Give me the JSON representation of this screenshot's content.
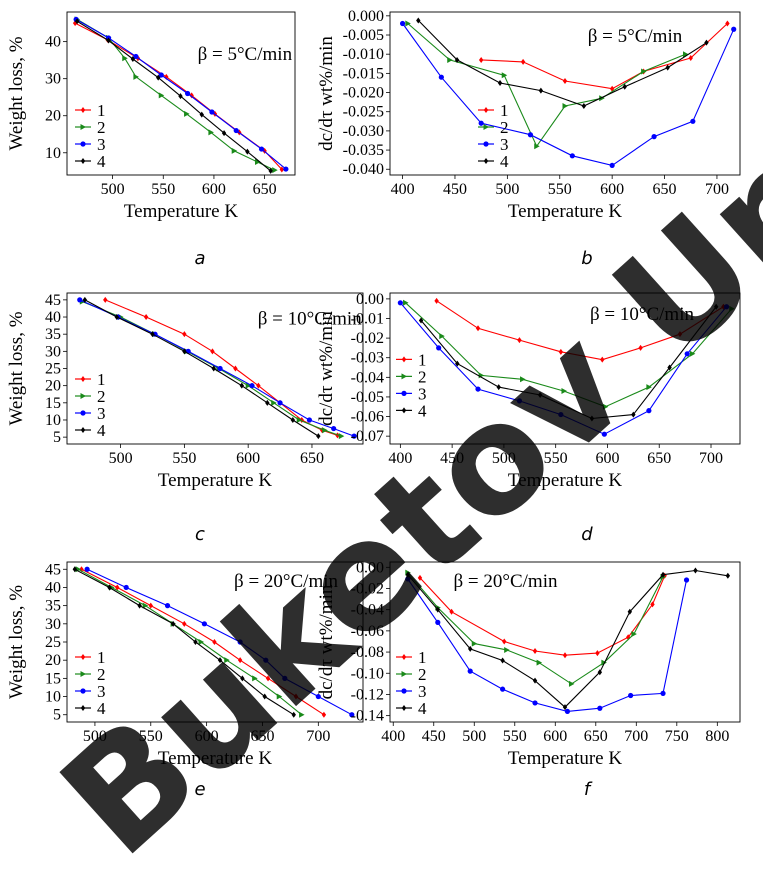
{
  "watermark": "Buketov Uni",
  "colors": {
    "1": "#ff0000",
    "2": "#1a8a1a",
    "3": "#0000ff",
    "4": "#000000"
  },
  "chart_data": [
    {
      "panel": "a",
      "caption": "a",
      "type": "line",
      "annotation": "β = 5°C/min",
      "xlabel": "Temperature K",
      "ylabel": "Weight loss, %",
      "xlim": [
        455,
        680
      ],
      "ylim": [
        4,
        48
      ],
      "xticks": [
        500,
        550,
        600,
        650
      ],
      "yticks": [
        10,
        20,
        30,
        40
      ],
      "legend": "lower-left",
      "series": [
        {
          "name": "1",
          "x": [
            463,
            495,
            525,
            553,
            578,
            601,
            625,
            650,
            667
          ],
          "y": [
            45,
            40.5,
            35.5,
            30.5,
            25.5,
            20.5,
            15.5,
            10.5,
            5.5
          ]
        },
        {
          "name": "2",
          "x": [
            465,
            496,
            512,
            523,
            548,
            573,
            597,
            620,
            643,
            660
          ],
          "y": [
            46,
            41,
            35.5,
            30.5,
            25.5,
            20.5,
            15.5,
            10.5,
            7.5,
            5.3
          ]
        },
        {
          "name": "3",
          "x": [
            464,
            496,
            523,
            548,
            574,
            598,
            622,
            647,
            671
          ],
          "y": [
            46,
            41,
            36,
            31,
            26,
            21,
            16,
            11,
            5.6
          ]
        },
        {
          "name": "4",
          "x": [
            465,
            496,
            520,
            545,
            567,
            588,
            610,
            633,
            656
          ],
          "y": [
            45.5,
            40.3,
            35.3,
            30.3,
            25.3,
            20.3,
            15.3,
            10.3,
            5.1
          ]
        }
      ]
    },
    {
      "panel": "b",
      "caption": "b",
      "type": "line",
      "annotation": "β = 5°C/min",
      "xlabel": "Temperature K",
      "ylabel": "dc/dτ wt%/min",
      "xlim": [
        388,
        722
      ],
      "ylim": [
        -0.0415,
        0.001
      ],
      "xticks": [
        400,
        450,
        500,
        550,
        600,
        650,
        700
      ],
      "yticks": [
        0,
        -0.005,
        -0.01,
        -0.015,
        -0.02,
        -0.025,
        -0.03,
        -0.035,
        -0.04
      ],
      "yticklabels": [
        "0.000",
        "-0.005",
        "-0.010",
        "-0.015",
        "-0.020",
        "-0.025",
        "-0.030",
        "-0.035",
        "-0.040"
      ],
      "legend": "lower-right",
      "series": [
        {
          "name": "1",
          "x": [
            475,
            515,
            555,
            600,
            630,
            675,
            710
          ],
          "y": [
            -0.0115,
            -0.012,
            -0.017,
            -0.019,
            -0.0145,
            -0.011,
            -0.002
          ]
        },
        {
          "name": "2",
          "x": [
            405,
            445,
            497,
            528,
            555,
            590,
            630,
            670
          ],
          "y": [
            -0.002,
            -0.0115,
            -0.0155,
            -0.034,
            -0.0235,
            -0.0215,
            -0.0145,
            -0.01
          ]
        },
        {
          "name": "3",
          "x": [
            400,
            437,
            475,
            522,
            562,
            600,
            640,
            677,
            716
          ],
          "y": [
            -0.002,
            -0.016,
            -0.028,
            -0.031,
            -0.0365,
            -0.039,
            -0.0315,
            -0.0275,
            -0.0035
          ]
        },
        {
          "name": "4",
          "x": [
            415,
            452,
            493,
            532,
            573,
            612,
            653,
            690
          ],
          "y": [
            -0.0012,
            -0.0115,
            -0.0175,
            -0.0195,
            -0.0235,
            -0.0185,
            -0.0135,
            -0.007
          ]
        }
      ]
    },
    {
      "panel": "c",
      "caption": "c",
      "type": "line",
      "annotation": "β = 10°C/min",
      "xlabel": "Temperature K",
      "ylabel": "Weight loss, %",
      "xlim": [
        458,
        690
      ],
      "ylim": [
        3,
        47
      ],
      "xticks": [
        500,
        550,
        600,
        650
      ],
      "yticks": [
        5,
        10,
        15,
        20,
        25,
        30,
        35,
        40,
        45
      ],
      "legend": "lower-left",
      "series": [
        {
          "name": "1",
          "x": [
            488,
            520,
            550,
            572,
            590,
            608,
            625,
            642,
            658,
            670
          ],
          "y": [
            45,
            40,
            35,
            30,
            25,
            20,
            15,
            10,
            7,
            5.5
          ]
        },
        {
          "name": "2",
          "x": [
            470,
            500,
            527,
            552,
            577,
            600,
            620,
            640,
            660,
            673
          ],
          "y": [
            44.5,
            40,
            35,
            30,
            25,
            20,
            15,
            10,
            7,
            5.3
          ]
        },
        {
          "name": "3",
          "x": [
            468,
            498,
            527,
            553,
            578,
            603,
            625,
            648,
            667,
            683
          ],
          "y": [
            45,
            40,
            35,
            30,
            25,
            20,
            15,
            10,
            7.5,
            5.3
          ]
        },
        {
          "name": "4",
          "x": [
            472,
            497,
            525,
            550,
            573,
            595,
            615,
            635,
            655
          ],
          "y": [
            45,
            40,
            35,
            30,
            25,
            20,
            15,
            10,
            5.3
          ]
        }
      ]
    },
    {
      "panel": "d",
      "caption": "d",
      "type": "line",
      "annotation": "β = 10°C/min",
      "xlabel": "Temperature K",
      "ylabel": "dc/dτ wt%/min",
      "xlim": [
        390,
        728
      ],
      "ylim": [
        -0.074,
        0.003
      ],
      "xticks": [
        400,
        450,
        500,
        550,
        600,
        650,
        700
      ],
      "yticks": [
        0,
        -0.01,
        -0.02,
        -0.03,
        -0.04,
        -0.05,
        -0.06,
        -0.07
      ],
      "yticklabels": [
        "0.00",
        "-0.01",
        "-0.02",
        "-0.03",
        "-0.04",
        "-0.05",
        "-0.06",
        "-0.07"
      ],
      "legend": "left",
      "series": [
        {
          "name": "1",
          "x": [
            435,
            475,
            515,
            555,
            595,
            632,
            670,
            712
          ],
          "y": [
            -0.001,
            -0.015,
            -0.021,
            -0.027,
            -0.031,
            -0.025,
            -0.018,
            -0.004
          ]
        },
        {
          "name": "2",
          "x": [
            405,
            440,
            478,
            518,
            558,
            598,
            640,
            682,
            720
          ],
          "y": [
            -0.002,
            -0.019,
            -0.039,
            -0.041,
            -0.047,
            -0.055,
            -0.045,
            -0.028,
            -0.005
          ]
        },
        {
          "name": "3",
          "x": [
            400,
            437,
            475,
            515,
            555,
            597,
            640,
            677,
            715
          ],
          "y": [
            -0.002,
            -0.025,
            -0.046,
            -0.052,
            -0.059,
            -0.069,
            -0.057,
            -0.028,
            -0.004
          ]
        },
        {
          "name": "4",
          "x": [
            420,
            455,
            495,
            535,
            585,
            625,
            660,
            705
          ],
          "y": [
            -0.011,
            -0.033,
            -0.045,
            -0.049,
            -0.061,
            -0.059,
            -0.035,
            -0.004
          ]
        }
      ]
    },
    {
      "panel": "e",
      "caption": "e",
      "type": "line",
      "annotation": "β = 20°C/min",
      "xlabel": "Temperature K",
      "ylabel": "Weight loss, %",
      "xlim": [
        475,
        740
      ],
      "ylim": [
        3,
        47
      ],
      "xticks": [
        500,
        550,
        600,
        650,
        700
      ],
      "yticks": [
        5,
        10,
        15,
        20,
        25,
        30,
        35,
        40,
        45
      ],
      "legend": "lower-left",
      "series": [
        {
          "name": "1",
          "x": [
            488,
            520,
            550,
            580,
            607,
            630,
            655,
            680,
            705
          ],
          "y": [
            45,
            40,
            35,
            30,
            25,
            20,
            15,
            10,
            5
          ]
        },
        {
          "name": "2",
          "x": [
            485,
            515,
            545,
            570,
            595,
            618,
            643,
            665,
            685
          ],
          "y": [
            45,
            40,
            35,
            30,
            25,
            20,
            15,
            10,
            5
          ]
        },
        {
          "name": "3",
          "x": [
            493,
            528,
            565,
            598,
            630,
            653,
            670,
            700,
            730
          ],
          "y": [
            45,
            40,
            35,
            30,
            25,
            20,
            15,
            10,
            5
          ]
        },
        {
          "name": "4",
          "x": [
            482,
            513,
            540,
            570,
            590,
            612,
            632,
            652,
            678
          ],
          "y": [
            45,
            40,
            35,
            30,
            25,
            20,
            15,
            10,
            5
          ]
        }
      ]
    },
    {
      "panel": "f",
      "caption": "f",
      "type": "line",
      "annotation": "β = 20°C/min",
      "xlabel": "Temperature K",
      "ylabel": "dc/dτ wt%/min",
      "xlim": [
        396,
        828
      ],
      "ylim": [
        -0.146,
        0.005
      ],
      "xticks": [
        400,
        450,
        500,
        550,
        600,
        650,
        700,
        750,
        800
      ],
      "yticks": [
        0,
        -0.02,
        -0.04,
        -0.06,
        -0.08,
        -0.1,
        -0.12,
        -0.14
      ],
      "yticklabels": [
        "0.00",
        "-0.02",
        "-0.04",
        "-0.06",
        "-0.08",
        "-0.10",
        "-0.12",
        "-0.14"
      ],
      "legend": "lower-left",
      "series": [
        {
          "name": "1",
          "x": [
            433,
            472,
            537,
            575,
            612,
            652,
            690,
            720,
            735
          ],
          "y": [
            -0.01,
            -0.042,
            -0.07,
            -0.079,
            -0.083,
            -0.081,
            -0.066,
            -0.035,
            -0.008
          ]
        },
        {
          "name": "2",
          "x": [
            418,
            455,
            500,
            540,
            580,
            620,
            660,
            697,
            733
          ],
          "y": [
            -0.005,
            -0.038,
            -0.072,
            -0.078,
            -0.09,
            -0.11,
            -0.09,
            -0.063,
            -0.009
          ]
        },
        {
          "name": "3",
          "x": [
            418,
            455,
            495,
            535,
            575,
            615,
            655,
            693,
            733,
            762
          ],
          "y": [
            -0.011,
            -0.052,
            -0.098,
            -0.115,
            -0.128,
            -0.136,
            -0.133,
            -0.121,
            -0.119,
            -0.012
          ]
        },
        {
          "name": "4",
          "x": [
            418,
            455,
            495,
            535,
            575,
            612,
            655,
            692,
            733,
            773,
            813
          ],
          "y": [
            -0.007,
            -0.04,
            -0.077,
            -0.088,
            -0.107,
            -0.132,
            -0.099,
            -0.042,
            -0.007,
            -0.003,
            -0.008
          ]
        }
      ]
    }
  ]
}
